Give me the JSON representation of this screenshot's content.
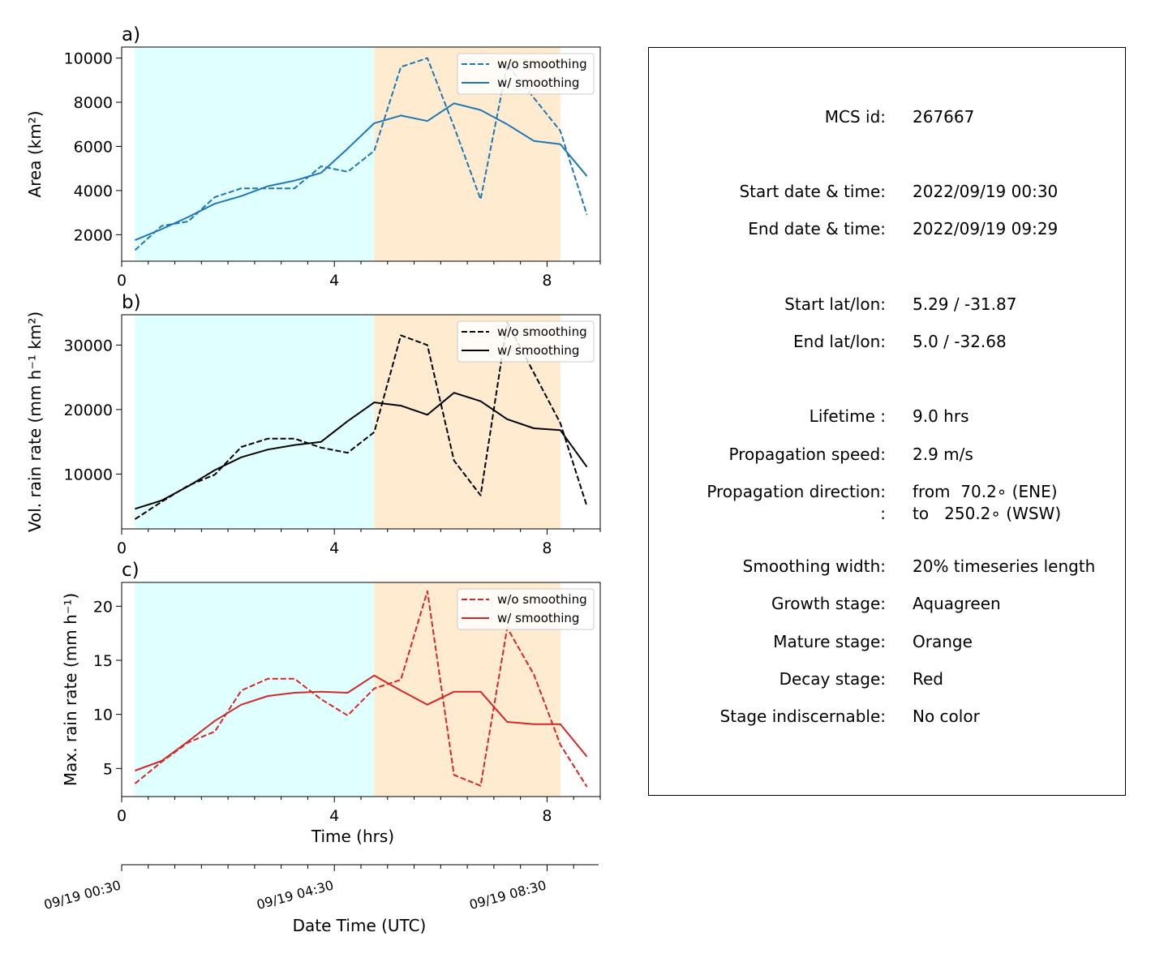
{
  "chart_data": [
    {
      "type": "line",
      "panel_label": "a)",
      "ylabel": "Area  (km²)",
      "xlim": [
        0,
        9
      ],
      "ylim": [
        800,
        10500
      ],
      "yticks": [
        2000,
        4000,
        6000,
        8000,
        10000
      ],
      "xticks": [
        0,
        4,
        8
      ],
      "color": "#1f77b4",
      "grid": false,
      "legend_position": "top-right",
      "x": [
        0.25,
        0.75,
        1.25,
        1.75,
        2.25,
        2.75,
        3.25,
        3.75,
        4.25,
        4.75,
        5.25,
        5.75,
        6.25,
        6.75,
        7.25,
        7.75,
        8.25,
        8.75
      ],
      "series": [
        {
          "name": "w/o smoothing",
          "style": "dashed",
          "values": [
            1300,
            2400,
            2600,
            3700,
            4100,
            4100,
            4100,
            5100,
            4850,
            5800,
            9600,
            10000,
            6900,
            3600,
            9700,
            8200,
            6700,
            2900
          ]
        },
        {
          "name": "w/ smoothing",
          "style": "solid",
          "values": [
            1750,
            2250,
            2800,
            3400,
            3750,
            4200,
            4450,
            4800,
            5900,
            7050,
            7400,
            7150,
            7950,
            7650,
            7000,
            6250,
            6100,
            4650
          ]
        }
      ],
      "stages": [
        {
          "stage": "growth",
          "x_range": [
            0.25,
            4.75
          ],
          "color": "#e0ffff"
        },
        {
          "stage": "mature",
          "x_range": [
            4.75,
            8.25
          ],
          "color": "#ffecd0"
        }
      ]
    },
    {
      "type": "line",
      "panel_label": "b)",
      "ylabel": "Vol. rain rate (mm h⁻¹ km²)",
      "xlim": [
        0,
        9
      ],
      "ylim": [
        1500,
        34700
      ],
      "yticks": [
        10000,
        20000,
        30000
      ],
      "xticks": [
        0,
        4,
        8
      ],
      "color": "#000000",
      "grid": false,
      "legend_position": "top-right",
      "x": [
        0.25,
        0.75,
        1.25,
        1.75,
        2.25,
        2.75,
        3.25,
        3.75,
        4.25,
        4.75,
        5.25,
        5.75,
        6.25,
        6.75,
        7.25,
        7.75,
        8.25,
        8.75
      ],
      "series": [
        {
          "name": "w/o smoothing",
          "style": "dashed",
          "values": [
            3000,
            5700,
            8200,
            9900,
            14200,
            15500,
            15500,
            14100,
            13300,
            16500,
            31500,
            30000,
            12100,
            6700,
            33500,
            25700,
            17900,
            5000
          ]
        },
        {
          "name": "w/ smoothing",
          "style": "solid",
          "values": [
            4600,
            5900,
            8100,
            10600,
            12600,
            13800,
            14500,
            15000,
            18200,
            21100,
            20600,
            19200,
            22600,
            21300,
            18500,
            17100,
            16800,
            11100
          ]
        }
      ],
      "stages": [
        {
          "stage": "growth",
          "x_range": [
            0.25,
            4.75
          ],
          "color": "#e0ffff"
        },
        {
          "stage": "mature",
          "x_range": [
            4.75,
            8.25
          ],
          "color": "#ffecd0"
        }
      ]
    },
    {
      "type": "line",
      "panel_label": "c)",
      "ylabel": "Max. rain rate  (mm h⁻¹)",
      "xlabel": "Time (hrs)",
      "xlim": [
        0,
        9
      ],
      "ylim": [
        2.4,
        22.2
      ],
      "yticks": [
        5,
        10,
        15,
        20
      ],
      "xticks": [
        0,
        4,
        8
      ],
      "color": "#d62728",
      "grid": false,
      "legend_position": "top-right",
      "x": [
        0.25,
        0.75,
        1.25,
        1.75,
        2.25,
        2.75,
        3.25,
        3.75,
        4.25,
        4.75,
        5.25,
        5.75,
        6.25,
        6.75,
        7.25,
        7.75,
        8.25,
        8.75
      ],
      "series": [
        {
          "name": "w/o smoothing",
          "style": "dashed",
          "values": [
            3.6,
            5.6,
            7.4,
            8.4,
            12.2,
            13.3,
            13.3,
            11.4,
            9.9,
            12.4,
            13.2,
            21.4,
            4.4,
            3.4,
            18.0,
            13.7,
            7.2,
            3.3
          ]
        },
        {
          "name": "w/ smoothing",
          "style": "solid",
          "values": [
            4.8,
            5.7,
            7.5,
            9.4,
            10.9,
            11.7,
            12.0,
            12.1,
            12.0,
            13.6,
            12.2,
            10.9,
            12.1,
            12.1,
            9.3,
            9.1,
            9.1,
            6.1
          ]
        }
      ],
      "stages": [
        {
          "stage": "growth",
          "x_range": [
            0.25,
            4.75
          ],
          "color": "#e0ffff"
        },
        {
          "stage": "mature",
          "x_range": [
            4.75,
            8.25
          ],
          "color": "#ffecd0"
        }
      ]
    }
  ],
  "datetime_axis": {
    "label": "Date Time (UTC)",
    "tick_labels": [
      "09/19 00:30",
      "09/19 04:30",
      "09/19 08:30"
    ]
  },
  "info": {
    "rows": [
      {
        "key": "MCS id:",
        "val": "267667"
      },
      {
        "key": "Start date & time:",
        "val": "2022/09/19 00:30"
      },
      {
        "key": "End date & time:",
        "val": "2022/09/19 09:29"
      },
      {
        "key": "Start lat/lon:",
        "val": "5.29 / -31.87"
      },
      {
        "key": "End lat/lon:",
        "val": "5.0 / -32.68"
      },
      {
        "key": "Lifetime :",
        "val": "9.0 hrs"
      },
      {
        "key": "Propagation speed:",
        "val": "2.9 m/s"
      },
      {
        "key": "Propagation direction:",
        "val": "from  70.2∘ (ENE)"
      },
      {
        "key": ":",
        "val": "to   250.2∘ (WSW)"
      },
      {
        "key": "Smoothing width:",
        "val": "20% timeseries length"
      },
      {
        "key": "Growth stage:",
        "val": "Aquagreen"
      },
      {
        "key": "Mature stage:",
        "val": "Orange"
      },
      {
        "key": "Decay stage:",
        "val": "Red"
      },
      {
        "key": "Stage indiscernable:",
        "val": "No color"
      }
    ]
  }
}
